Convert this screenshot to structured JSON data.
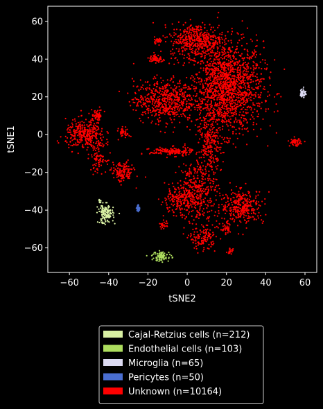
{
  "chart_data": {
    "type": "scatter",
    "xlabel": "tSNE2",
    "ylabel": "tSNE1",
    "xlim": [
      -71,
      66
    ],
    "ylim": [
      -73,
      68
    ],
    "xticks": [
      -60,
      -40,
      -20,
      0,
      20,
      40,
      60
    ],
    "yticks": [
      -60,
      -40,
      -20,
      0,
      20,
      40,
      60
    ],
    "background": "#000000",
    "grid": false,
    "legend_position": "bottom-center",
    "series": [
      {
        "name": "Cajal-Retzius cells (n=212)",
        "color": "#d9f0a3",
        "clusters": [
          {
            "cx": -41.5,
            "cy": -42,
            "rx": 3.5,
            "ry": 4.5,
            "n": 150
          },
          {
            "cx": -44.5,
            "cy": -35,
            "rx": 0.6,
            "ry": 1.2,
            "n": 10
          }
        ]
      },
      {
        "name": "Endothelial cells (n=103)",
        "color": "#addd5e",
        "clusters": [
          {
            "cx": -13,
            "cy": -64.5,
            "rx": 4.5,
            "ry": 2.5,
            "n": 80
          }
        ]
      },
      {
        "name": "Microglia (n=65)",
        "color": "#dcdaf2",
        "clusters": [
          {
            "cx": 59,
            "cy": 22,
            "rx": 1.3,
            "ry": 2.2,
            "n": 50
          }
        ]
      },
      {
        "name": "Pericytes (n=50)",
        "color": "#4a6ed1",
        "clusters": [
          {
            "cx": -25,
            "cy": -39,
            "rx": 0.8,
            "ry": 1.6,
            "n": 40
          }
        ]
      },
      {
        "name": "Unknown (n=10164)",
        "color": "#ff0000",
        "clusters": [
          {
            "cx": 20,
            "cy": 25,
            "rx": 17,
            "ry": 22,
            "n": 1600
          },
          {
            "cx": 5,
            "cy": 50,
            "rx": 12,
            "ry": 8,
            "n": 450
          },
          {
            "cx": -12,
            "cy": 18,
            "rx": 14,
            "ry": 10,
            "n": 550
          },
          {
            "cx": -16,
            "cy": 40,
            "rx": 3,
            "ry": 2,
            "n": 60
          },
          {
            "cx": -15,
            "cy": 50,
            "rx": 2,
            "ry": 1.5,
            "n": 30
          },
          {
            "cx": -52,
            "cy": 0,
            "rx": 9,
            "ry": 7,
            "n": 320
          },
          {
            "cx": -45,
            "cy": -12,
            "rx": 3.5,
            "ry": 7,
            "n": 90
          },
          {
            "cx": -46,
            "cy": 10,
            "rx": 3,
            "ry": 3,
            "n": 60
          },
          {
            "cx": -33,
            "cy": -20,
            "rx": 5,
            "ry": 5,
            "n": 140
          },
          {
            "cx": -32,
            "cy": 1,
            "rx": 2.5,
            "ry": 2.5,
            "n": 40
          },
          {
            "cx": -8,
            "cy": -9,
            "rx": 10,
            "ry": 2,
            "n": 160
          },
          {
            "cx": 12,
            "cy": -5,
            "rx": 5,
            "ry": 12,
            "n": 200
          },
          {
            "cx": 5,
            "cy": -30,
            "rx": 9,
            "ry": 15,
            "n": 380
          },
          {
            "cx": -5,
            "cy": -35,
            "rx": 8,
            "ry": 6,
            "n": 160
          },
          {
            "cx": 28,
            "cy": -38,
            "rx": 10,
            "ry": 8,
            "n": 320
          },
          {
            "cx": 8,
            "cy": -55,
            "rx": 6,
            "ry": 5,
            "n": 120
          },
          {
            "cx": -12,
            "cy": -48,
            "rx": 2,
            "ry": 2,
            "n": 25
          },
          {
            "cx": 22,
            "cy": -62,
            "rx": 1.5,
            "ry": 1.5,
            "n": 20
          },
          {
            "cx": 55,
            "cy": -4,
            "rx": 2.5,
            "ry": 1.8,
            "n": 60
          },
          {
            "cx": 20,
            "cy": -50,
            "rx": 3,
            "ry": 3,
            "n": 40
          }
        ]
      }
    ]
  }
}
